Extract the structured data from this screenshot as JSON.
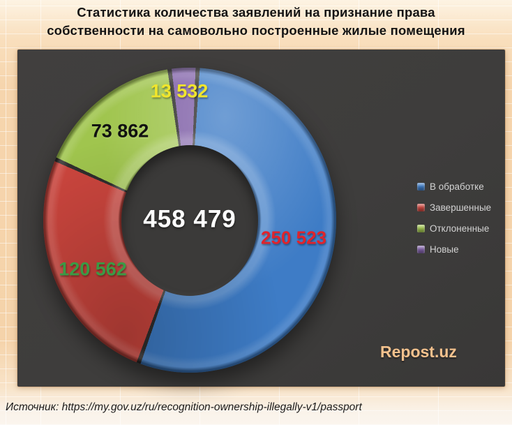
{
  "title": {
    "line1": "Статистика количества заявлений на признание права",
    "line2": "собственности на самовольно построенные жилые помещения"
  },
  "chart_data": {
    "type": "pie",
    "subtype": "donut-3d",
    "title": "Статистика количества заявлений на признание права собственности на самовольно построенные жилые помещения",
    "total": 458479,
    "total_label": "458 479",
    "legend_position": "right",
    "start_angle_deg": 3,
    "series": [
      {
        "name": "В обработке",
        "value": 250523,
        "label": "250 523",
        "color": "#3E7CC6",
        "label_color": "#E0232B"
      },
      {
        "name": "Завершенные",
        "value": 120562,
        "label": "120 562",
        "color": "#CC463E",
        "label_color": "#3B9A45"
      },
      {
        "name": "Отклоненные",
        "value": 73862,
        "label": "73 862",
        "color": "#A0C54E",
        "label_color": "#111111"
      },
      {
        "name": "Новые",
        "value": 13532,
        "label": "13 532",
        "color": "#8061A8",
        "label_color": "#F0E52C"
      }
    ],
    "separator_color": "#302F2E",
    "panel_color": "#3E3D3C"
  },
  "watermark": "Repost.uz",
  "source": "Источник: https://my.gov.uz/ru/recognition-ownership-illegally-v1/passport"
}
